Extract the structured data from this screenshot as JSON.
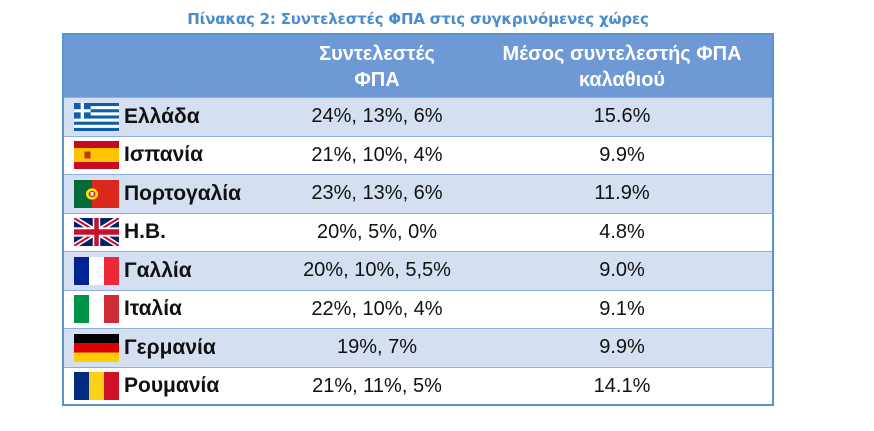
{
  "caption": "Πίνακας 2: Συντελεστές ΦΠΑ στις συγκρινόμενες χώρες",
  "table": {
    "headers": {
      "country": "",
      "rates": [
        "Συντελεστές",
        "ΦΠΑ"
      ],
      "average": [
        "Μέσος συντελεστής ΦΠΑ",
        "καλαθιού"
      ]
    },
    "rows": [
      {
        "country": "Ελλάδα",
        "flag": "greece-flag-icon",
        "rates": "24%, 13%, 6%",
        "average": "15.6%"
      },
      {
        "country": "Ισπανία",
        "flag": "spain-flag-icon",
        "rates": "21%, 10%, 4%",
        "average": "9.9%"
      },
      {
        "country": "Πορτογαλία",
        "flag": "portugal-flag-icon",
        "rates": "23%, 13%, 6%",
        "average": "11.9%"
      },
      {
        "country": "Η.Β.",
        "flag": "uk-flag-icon",
        "rates": "20%, 5%, 0%",
        "average": "4.8%"
      },
      {
        "country": "Γαλλία",
        "flag": "france-flag-icon",
        "rates": "20%, 10%, 5,5%",
        "average": "9.0%"
      },
      {
        "country": "Ιταλία",
        "flag": "italy-flag-icon",
        "rates": "22%, 10%, 4%",
        "average": "9.1%"
      },
      {
        "country": "Γερμανία",
        "flag": "germany-flag-icon",
        "rates": "19%, 7%",
        "average": "9.9%"
      },
      {
        "country": "Ρουμανία",
        "flag": "romania-flag-icon",
        "rates": "21%, 11%, 5%",
        "average": "14.1%"
      }
    ]
  },
  "colors": {
    "caption": "#4a8ccf",
    "header_bg": "#6f99d4",
    "alt_row_bg": "#d4dff1",
    "border": "#5b93d1"
  }
}
